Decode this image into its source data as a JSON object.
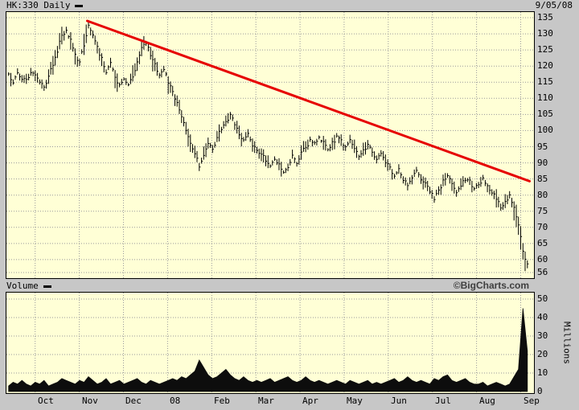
{
  "header": {
    "symbol_label": "HK:330 Daily",
    "date": "9/05/08"
  },
  "volume_header": {
    "label": "Volume",
    "brand": "©BigCharts.com"
  },
  "colors": {
    "chrome_bg": "#c7c7c7",
    "plot_bg": "#ffffd6",
    "grid": "#9a9a9a",
    "bars": "#000000",
    "volume_fill": "#0d0d0d",
    "trendline": "#e60000",
    "brand_text": "#3f3f3f"
  },
  "chart_data": [
    {
      "type": "ohlc",
      "title": "HK:330 Daily price",
      "x_unit": "months_from_Oct_2007",
      "x_range": [
        -0.65,
        11.3
      ],
      "t_data_range": [
        -0.6,
        11.15
      ],
      "month_ticks": [
        0,
        1,
        2,
        3,
        4,
        5,
        6,
        7,
        8,
        9,
        10,
        11
      ],
      "month_labels": [
        "Oct",
        "Nov",
        "Dec",
        "08",
        "Feb",
        "Mar",
        "Apr",
        "May",
        "Jun",
        "Jul",
        "Aug",
        "Sep"
      ],
      "ylim": [
        56,
        135
      ],
      "price_ticks": [
        135,
        130,
        125,
        120,
        115,
        110,
        105,
        100,
        95,
        90,
        85,
        80,
        75,
        70,
        65,
        60,
        56
      ],
      "closes": [
        117,
        115,
        118,
        116,
        116,
        118,
        117,
        115,
        113,
        117,
        121,
        125,
        129,
        131,
        128,
        124,
        121,
        127,
        132,
        130,
        126,
        122,
        118,
        121,
        117,
        114,
        116,
        114,
        117,
        121,
        125,
        127,
        124,
        120,
        117,
        119,
        115,
        112,
        108,
        104,
        100,
        96,
        93,
        89,
        92,
        96,
        94,
        98,
        101,
        103,
        105,
        102,
        99,
        97,
        99,
        96,
        94,
        93,
        91,
        89,
        91,
        89,
        87,
        89,
        92,
        90,
        93,
        95,
        97,
        96,
        98,
        96,
        94,
        96,
        98,
        97,
        95,
        97,
        94,
        92,
        94,
        96,
        93,
        91,
        93,
        90,
        88,
        86,
        88,
        85,
        83,
        86,
        88,
        85,
        83,
        81,
        79,
        82,
        84,
        86,
        84,
        81,
        83,
        85,
        84,
        82,
        84,
        85,
        83,
        81,
        79,
        76,
        78,
        80,
        76,
        70,
        63,
        58
      ],
      "trendline": {
        "x1": 1.18,
        "y1": 134.0,
        "x2": 11.2,
        "y2": 84.3
      }
    },
    {
      "type": "area",
      "title": "Volume",
      "y_unit": "Millions",
      "ylim": [
        0,
        50
      ],
      "volume_ticks": [
        50,
        40,
        30,
        20,
        10,
        0
      ],
      "values": [
        3,
        5,
        4,
        6,
        4,
        3,
        5,
        4,
        6,
        3,
        4,
        5,
        7,
        6,
        5,
        4,
        6,
        5,
        8,
        6,
        4,
        5,
        7,
        4,
        5,
        6,
        4,
        5,
        6,
        7,
        5,
        4,
        6,
        5,
        4,
        5,
        6,
        7,
        6,
        8,
        7,
        9,
        11,
        17,
        13,
        9,
        7,
        8,
        10,
        12,
        9,
        7,
        6,
        8,
        6,
        5,
        6,
        5,
        6,
        7,
        5,
        6,
        7,
        8,
        6,
        5,
        6,
        8,
        6,
        5,
        6,
        5,
        4,
        5,
        6,
        5,
        4,
        6,
        5,
        4,
        5,
        6,
        4,
        5,
        4,
        5,
        6,
        7,
        5,
        6,
        8,
        6,
        5,
        6,
        5,
        4,
        7,
        6,
        8,
        9,
        6,
        5,
        6,
        7,
        5,
        4,
        4,
        5,
        3,
        4,
        5,
        4,
        3,
        4,
        8,
        12,
        45,
        22
      ]
    }
  ]
}
